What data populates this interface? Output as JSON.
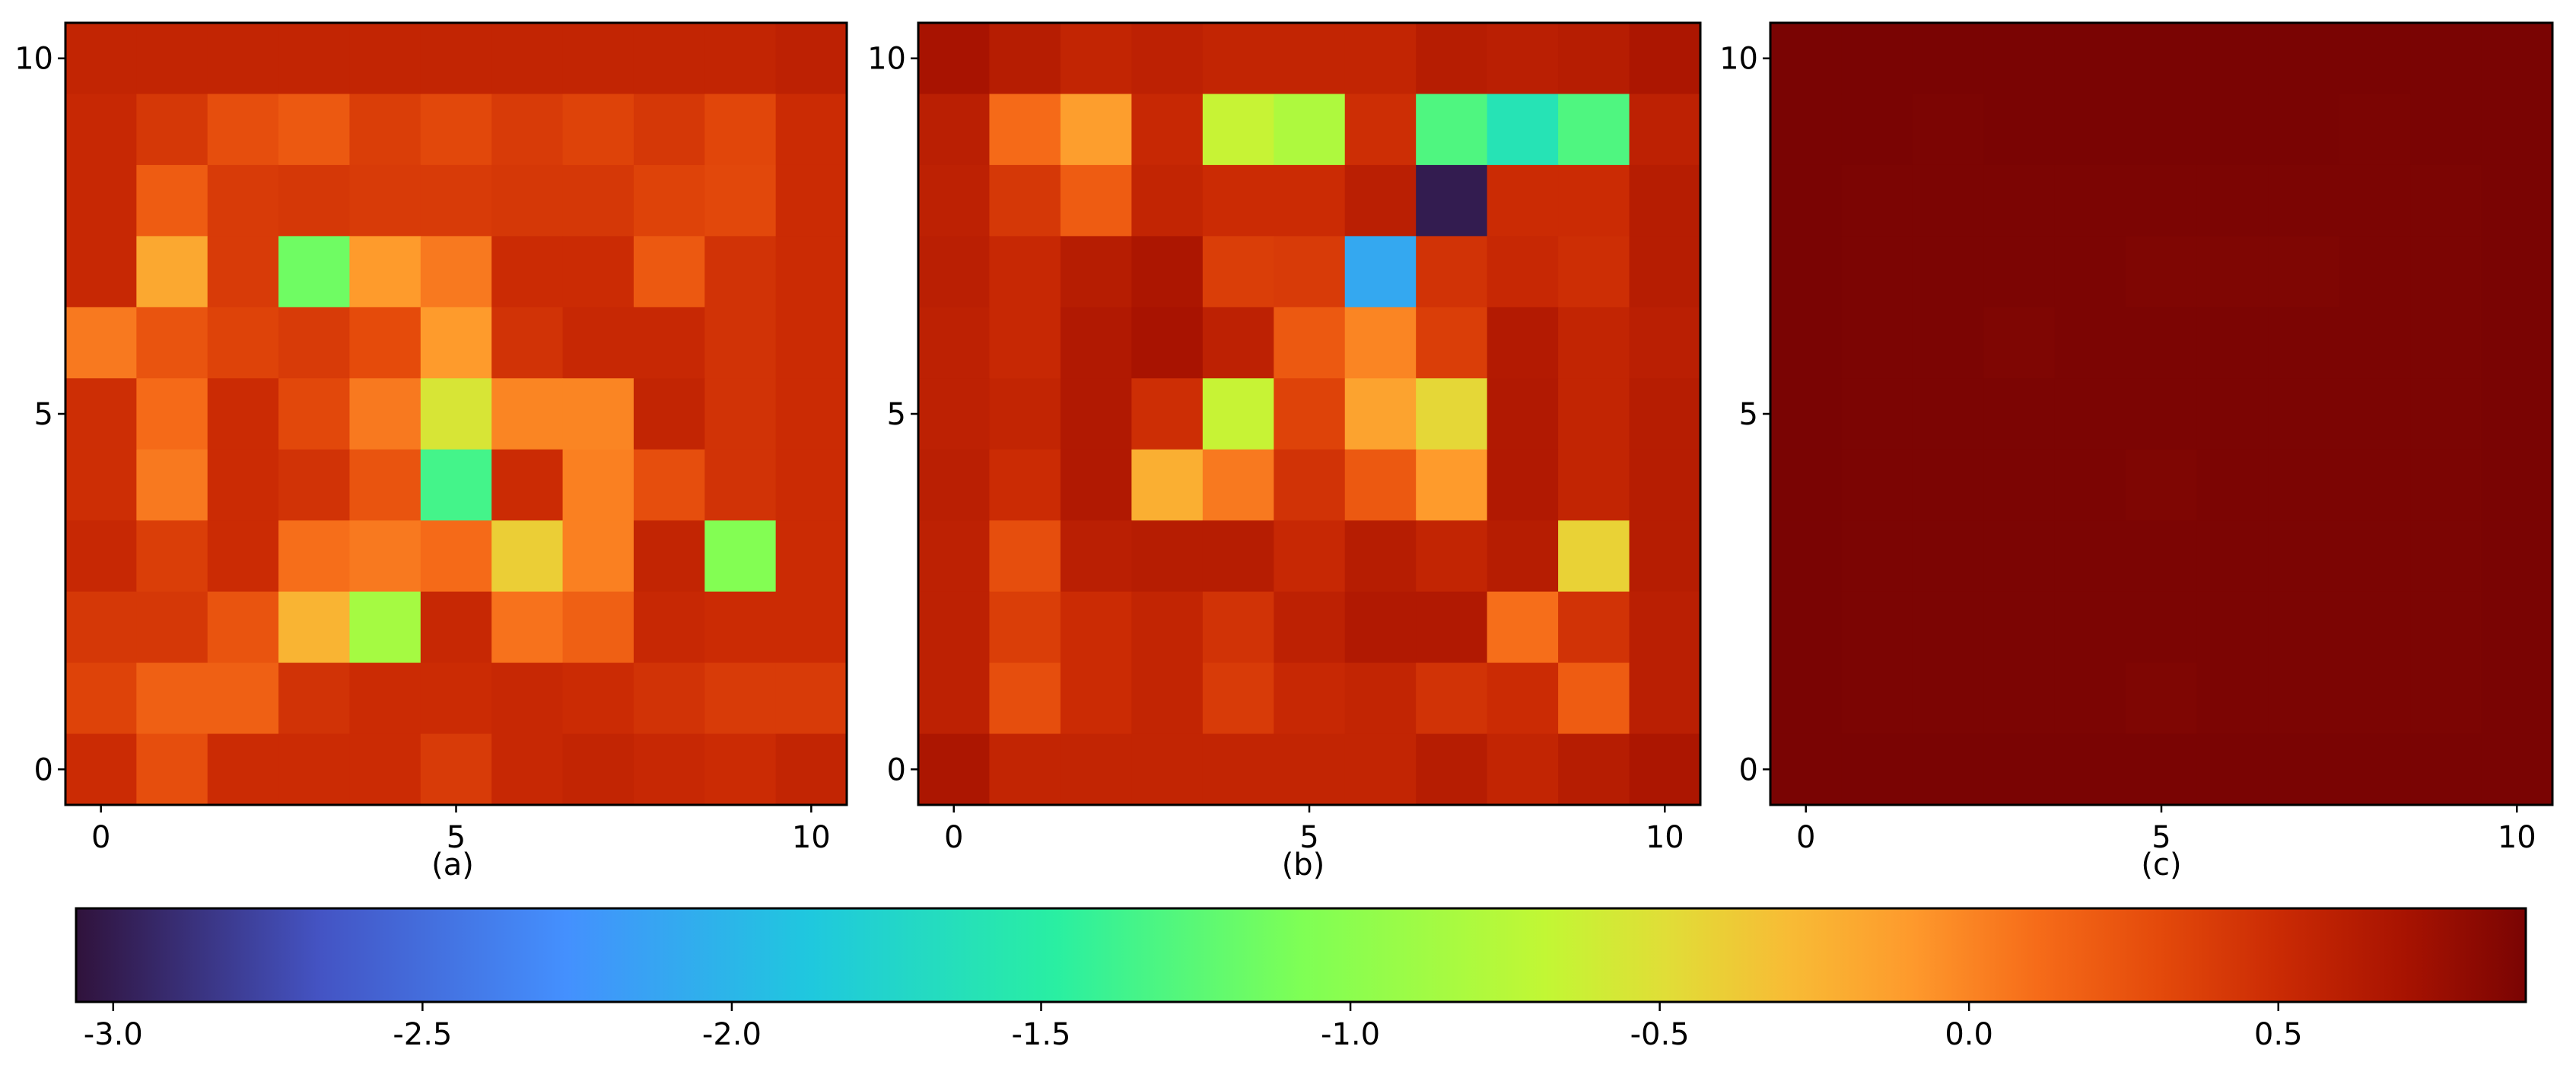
{
  "colorbar": {
    "vmin": -3.06,
    "vmax": 0.9,
    "ticks": [
      -3.0,
      -2.5,
      -2.0,
      -1.5,
      -1.0,
      -0.5,
      0.0,
      0.5
    ],
    "tick_labels": [
      "-3.0",
      "-2.5",
      "-2.0",
      "-1.5",
      "-1.0",
      "-0.5",
      "0.0",
      "0.5"
    ],
    "colormap": "turbo",
    "stops": [
      [
        0.0,
        "#30123b"
      ],
      [
        0.1,
        "#4454c4"
      ],
      [
        0.2,
        "#4490fe"
      ],
      [
        0.3,
        "#1fc8de"
      ],
      [
        0.4,
        "#29efa2"
      ],
      [
        0.5,
        "#7eff55"
      ],
      [
        0.6,
        "#c2f734"
      ],
      [
        0.65,
        "#e1dd37"
      ],
      [
        0.7,
        "#f8bb35"
      ],
      [
        0.75,
        "#fe992c"
      ],
      [
        0.8,
        "#f66c19"
      ],
      [
        0.85,
        "#e44a0b"
      ],
      [
        0.9,
        "#ca2a04"
      ],
      [
        0.95,
        "#a81301"
      ],
      [
        1.0,
        "#7a0403"
      ]
    ]
  },
  "chart_data": [
    {
      "type": "heatmap",
      "caption": "(a)",
      "x_ticks": [
        0,
        5,
        10
      ],
      "y_ticks": [
        0,
        5,
        10
      ],
      "extent": [
        -0.5,
        10.5,
        -0.5,
        10.5
      ],
      "rows_top_to_bottom": [
        [
          0.55,
          0.55,
          0.55,
          0.55,
          0.55,
          0.55,
          0.55,
          0.55,
          0.55,
          0.55,
          0.58
        ],
        [
          0.52,
          0.42,
          0.28,
          0.22,
          0.38,
          0.32,
          0.4,
          0.35,
          0.42,
          0.33,
          0.5
        ],
        [
          0.52,
          0.2,
          0.4,
          0.42,
          0.4,
          0.4,
          0.42,
          0.42,
          0.35,
          0.32,
          0.5
        ],
        [
          0.52,
          -0.18,
          0.4,
          -1.15,
          -0.1,
          0.05,
          0.5,
          0.5,
          0.22,
          0.45,
          0.5
        ],
        [
          0.05,
          0.25,
          0.35,
          0.4,
          0.3,
          -0.1,
          0.45,
          0.52,
          0.52,
          0.45,
          0.5
        ],
        [
          0.48,
          0.12,
          0.5,
          0.32,
          0.05,
          -0.55,
          0.0,
          0.0,
          0.55,
          0.45,
          0.5
        ],
        [
          0.48,
          0.05,
          0.5,
          0.45,
          0.25,
          -1.35,
          0.5,
          0.02,
          0.28,
          0.45,
          0.5
        ],
        [
          0.52,
          0.38,
          0.5,
          0.1,
          0.05,
          0.12,
          -0.4,
          0.02,
          0.55,
          -1.05,
          0.5
        ],
        [
          0.42,
          0.42,
          0.25,
          -0.25,
          -0.85,
          0.52,
          0.08,
          0.18,
          0.52,
          0.5,
          0.5
        ],
        [
          0.35,
          0.18,
          0.18,
          0.45,
          0.5,
          0.5,
          0.52,
          0.5,
          0.45,
          0.4,
          0.4
        ],
        [
          0.5,
          0.28,
          0.5,
          0.5,
          0.5,
          0.4,
          0.52,
          0.55,
          0.52,
          0.5,
          0.55
        ]
      ]
    },
    {
      "type": "heatmap",
      "caption": "(b)",
      "x_ticks": [
        0,
        5,
        10
      ],
      "y_ticks": [
        0,
        5,
        10
      ],
      "extent": [
        -0.5,
        10.5,
        -0.5,
        10.5
      ],
      "rows_top_to_bottom": [
        [
          0.7,
          0.62,
          0.55,
          0.58,
          0.55,
          0.55,
          0.55,
          0.62,
          0.6,
          0.62,
          0.68
        ],
        [
          0.6,
          0.12,
          -0.12,
          0.52,
          -0.65,
          -0.8,
          0.48,
          -1.3,
          -1.6,
          -1.3,
          0.58
        ],
        [
          0.58,
          0.42,
          0.2,
          0.55,
          0.5,
          0.5,
          0.6,
          -3.0,
          0.5,
          0.5,
          0.62
        ],
        [
          0.6,
          0.52,
          0.62,
          0.68,
          0.38,
          0.4,
          -2.1,
          0.45,
          0.52,
          0.48,
          0.62
        ],
        [
          0.58,
          0.52,
          0.65,
          0.7,
          0.58,
          0.22,
          0.0,
          0.38,
          0.64,
          0.55,
          0.6
        ],
        [
          0.58,
          0.55,
          0.65,
          0.48,
          -0.65,
          0.35,
          -0.15,
          -0.45,
          0.65,
          0.55,
          0.62
        ],
        [
          0.6,
          0.5,
          0.65,
          -0.22,
          0.05,
          0.45,
          0.22,
          -0.1,
          0.65,
          0.55,
          0.62
        ],
        [
          0.58,
          0.28,
          0.6,
          0.62,
          0.62,
          0.52,
          0.62,
          0.55,
          0.62,
          -0.42,
          0.62
        ],
        [
          0.58,
          0.38,
          0.5,
          0.55,
          0.45,
          0.58,
          0.65,
          0.65,
          0.1,
          0.45,
          0.6
        ],
        [
          0.58,
          0.28,
          0.5,
          0.55,
          0.4,
          0.52,
          0.55,
          0.45,
          0.5,
          0.2,
          0.6
        ],
        [
          0.68,
          0.55,
          0.55,
          0.55,
          0.55,
          0.55,
          0.55,
          0.62,
          0.55,
          0.62,
          0.68
        ]
      ]
    },
    {
      "type": "heatmap",
      "caption": "(c)",
      "x_ticks": [
        0,
        5,
        10
      ],
      "y_ticks": [
        0,
        5,
        10
      ],
      "extent": [
        -0.5,
        10.5,
        -0.5,
        10.5
      ],
      "rows_top_to_bottom": [
        [
          0.9,
          0.9,
          0.9,
          0.9,
          0.9,
          0.9,
          0.9,
          0.9,
          0.9,
          0.9,
          0.9
        ],
        [
          0.9,
          0.9,
          0.89,
          0.9,
          0.9,
          0.9,
          0.9,
          0.9,
          0.89,
          0.9,
          0.9
        ],
        [
          0.9,
          0.89,
          0.89,
          0.89,
          0.89,
          0.89,
          0.89,
          0.89,
          0.89,
          0.89,
          0.9
        ],
        [
          0.9,
          0.89,
          0.89,
          0.89,
          0.89,
          0.88,
          0.88,
          0.88,
          0.89,
          0.89,
          0.9
        ],
        [
          0.9,
          0.89,
          0.89,
          0.88,
          0.89,
          0.89,
          0.89,
          0.89,
          0.89,
          0.89,
          0.9
        ],
        [
          0.9,
          0.89,
          0.89,
          0.89,
          0.89,
          0.89,
          0.89,
          0.89,
          0.89,
          0.89,
          0.9
        ],
        [
          0.9,
          0.89,
          0.89,
          0.89,
          0.89,
          0.88,
          0.89,
          0.89,
          0.89,
          0.89,
          0.9
        ],
        [
          0.9,
          0.89,
          0.89,
          0.89,
          0.89,
          0.89,
          0.89,
          0.89,
          0.89,
          0.89,
          0.9
        ],
        [
          0.9,
          0.89,
          0.89,
          0.89,
          0.89,
          0.89,
          0.89,
          0.89,
          0.89,
          0.89,
          0.9
        ],
        [
          0.9,
          0.89,
          0.89,
          0.89,
          0.89,
          0.88,
          0.89,
          0.89,
          0.89,
          0.89,
          0.9
        ],
        [
          0.9,
          0.9,
          0.9,
          0.9,
          0.9,
          0.9,
          0.9,
          0.9,
          0.9,
          0.9,
          0.9
        ]
      ]
    }
  ]
}
